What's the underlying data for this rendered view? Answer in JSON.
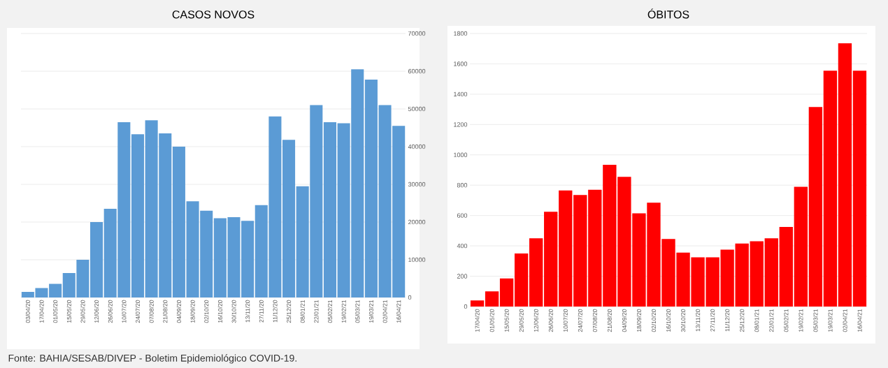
{
  "chart_data": [
    {
      "type": "bar",
      "title": "CASOS NOVOS",
      "categories": [
        "03/04/20",
        "17/04/20",
        "01/05/20",
        "15/05/20",
        "29/05/20",
        "12/06/20",
        "26/06/20",
        "10/07/20",
        "24/07/20",
        "07/08/20",
        "21/08/20",
        "04/09/20",
        "18/09/20",
        "02/10/20",
        "16/10/20",
        "30/10/20",
        "13/11/20",
        "27/11/20",
        "11/12/20",
        "25/12/20",
        "08/01/21",
        "22/01/21",
        "05/02/21",
        "19/02/21",
        "05/03/21",
        "19/03/21",
        "02/04/21",
        "16/04/21"
      ],
      "values": [
        1500,
        2500,
        3600,
        6500,
        10000,
        20000,
        23500,
        46500,
        43300,
        47000,
        43500,
        40000,
        25500,
        23000,
        21000,
        21300,
        20300,
        24500,
        48000,
        41800,
        29500,
        51000,
        46500,
        46200,
        60500,
        57800,
        51000,
        45500
      ],
      "color": "#5b9bd5",
      "ylim": [
        0,
        70000
      ],
      "yticks": [
        0,
        10000,
        20000,
        30000,
        40000,
        50000,
        60000,
        70000
      ],
      "grid": "y",
      "annotations": [
        "Fonte: BAHIA/SESAB/DIVEP - Boletim Epidemiológico COVID-19."
      ]
    },
    {
      "type": "bar",
      "title": "ÓBITOS",
      "categories": [
        "17/04/20",
        "01/05/20",
        "15/05/20",
        "29/05/20",
        "12/06/20",
        "26/06/20",
        "10/07/20",
        "24/07/20",
        "07/08/20",
        "21/08/20",
        "04/09/20",
        "18/09/20",
        "02/10/20",
        "16/10/20",
        "30/10/20",
        "13/11/20",
        "27/11/20",
        "11/12/20",
        "25/12/20",
        "08/01/21",
        "22/01/21",
        "05/02/21",
        "19/02/21",
        "05/03/21",
        "19/03/21",
        "02/04/21",
        "16/04/21"
      ],
      "values": [
        40,
        100,
        185,
        350,
        450,
        625,
        765,
        735,
        770,
        935,
        855,
        615,
        685,
        445,
        355,
        325,
        325,
        375,
        415,
        430,
        450,
        525,
        790,
        1315,
        1555,
        1735,
        1555
      ],
      "color": "#ff0000",
      "ylim": [
        0,
        1800
      ],
      "yticks": [
        0,
        200,
        400,
        600,
        800,
        1000,
        1200,
        1400,
        1600,
        1800
      ],
      "grid": "y"
    }
  ]
}
